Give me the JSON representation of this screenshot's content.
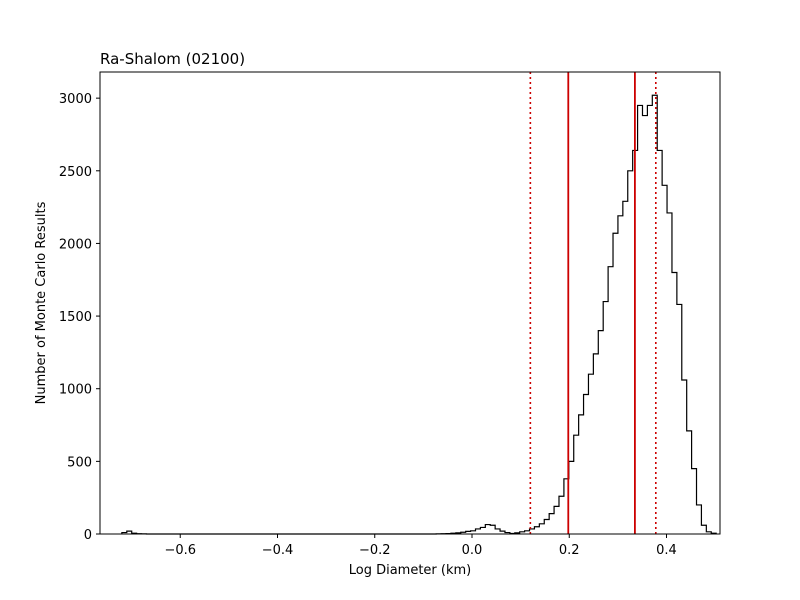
{
  "chart_data": {
    "type": "histogram",
    "title": "Ra-Shalom (02100)",
    "xlabel": "Log Diameter (km)",
    "ylabel": "Number of Monte Carlo Results",
    "xlim": [
      -0.765,
      0.51
    ],
    "ylim": [
      0,
      3180
    ],
    "xticks": [
      -0.6,
      -0.4,
      -0.2,
      0.0,
      0.2,
      0.4
    ],
    "xtick_labels": [
      "−0.6",
      "−0.4",
      "−0.2",
      "0.0",
      "0.2",
      "0.4"
    ],
    "yticks": [
      0,
      500,
      1000,
      1500,
      2000,
      2500,
      3000
    ],
    "ytick_labels": [
      "0",
      "500",
      "1000",
      "1500",
      "2000",
      "2500",
      "3000"
    ],
    "bin_start": -0.72,
    "bin_width": 0.0101,
    "counts": [
      10,
      20,
      5,
      2,
      1,
      0,
      0,
      0,
      0,
      0,
      0,
      0,
      0,
      0,
      0,
      0,
      0,
      0,
      0,
      0,
      0,
      0,
      0,
      0,
      0,
      0,
      0,
      0,
      0,
      0,
      0,
      0,
      0,
      0,
      0,
      0,
      0,
      0,
      0,
      0,
      0,
      0,
      0,
      0,
      0,
      0,
      0,
      0,
      0,
      0,
      0,
      0,
      0,
      0,
      0,
      0,
      0,
      0,
      0,
      0,
      0,
      0,
      0,
      0,
      1,
      2,
      3,
      5,
      8,
      12,
      18,
      22,
      35,
      45,
      65,
      60,
      35,
      20,
      10,
      4,
      8,
      15,
      22,
      35,
      50,
      70,
      100,
      140,
      190,
      260,
      380,
      500,
      680,
      820,
      960,
      1100,
      1240,
      1400,
      1600,
      1840,
      2070,
      2190,
      2290,
      2500,
      2640,
      2950,
      2880,
      2950,
      3020,
      2640,
      2400,
      2210,
      1800,
      1580,
      1060,
      710,
      450,
      200,
      60,
      15,
      5
    ],
    "vlines": [
      {
        "x": 0.12,
        "style": "dotted",
        "color": "#cc0000"
      },
      {
        "x": 0.198,
        "style": "solid",
        "color": "#cc0000"
      },
      {
        "x": 0.335,
        "style": "solid",
        "color": "#cc0000"
      },
      {
        "x": 0.378,
        "style": "dotted",
        "color": "#cc0000"
      }
    ],
    "grid": false,
    "legend": "none",
    "colors": {
      "histogram": "#000000",
      "vlines": "#cc0000"
    }
  }
}
